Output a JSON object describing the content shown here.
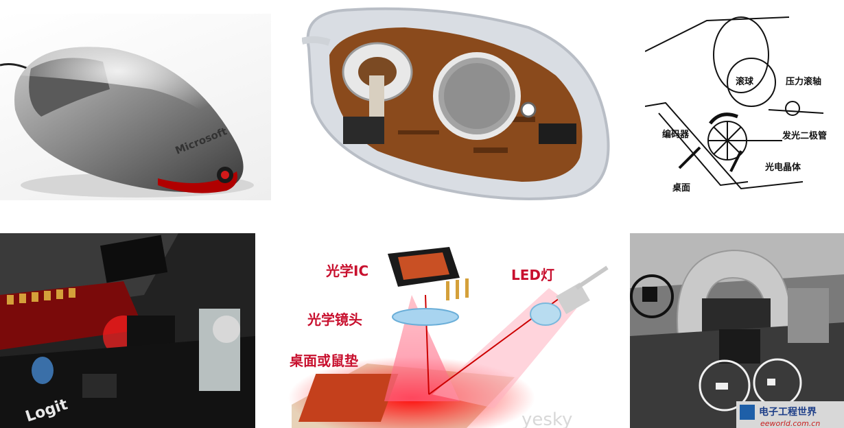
{
  "panels": {
    "mouse_photo": {
      "brand_text": "Microsoft"
    },
    "ball_mouse_internal": {},
    "ball_mouse_diagram": {
      "labels": {
        "ball": "滚球",
        "pressure_roller": "压力滚轴",
        "encoder": "编码器",
        "led": "发光二极管",
        "phototransistor": "光电晶体",
        "desk": "桌面"
      }
    },
    "optical_circuit_board": {
      "brand_text": "Logit"
    },
    "optical_sensor_diagram": {
      "labels": {
        "optical_ic": "光学IC",
        "optical_lens": "光学镜头",
        "desk_or_pad": "桌面或鼠垫",
        "led": "LED灯"
      },
      "watermark": "yesky"
    },
    "optical_mouse_internal": {
      "watermark_cn": "电子工程世界",
      "watermark_url": "eeworld.com.cn"
    }
  }
}
